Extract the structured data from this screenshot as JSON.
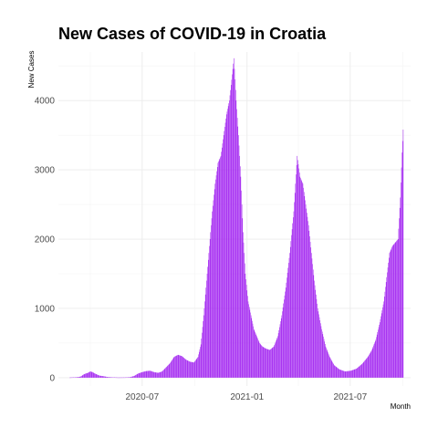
{
  "chart_data": {
    "type": "bar",
    "title": "New Cases of COVID-19 in Croatia",
    "xlabel": "Month",
    "ylabel": "New Cases",
    "x_ticks": [
      "2020-07",
      "2021-01",
      "2021-07"
    ],
    "y_ticks": [
      0,
      1000,
      2000,
      3000,
      4000
    ],
    "xlim": [
      "2020-02-05",
      "2021-10-15"
    ],
    "ylim": [
      -120,
      4700
    ],
    "grid": true,
    "color": "#a020f0",
    "series": [
      {
        "points": [
          [
            "2020-02-25",
            2
          ],
          [
            "2020-03-05",
            5
          ],
          [
            "2020-03-12",
            10
          ],
          [
            "2020-03-16",
            20
          ],
          [
            "2020-03-20",
            45
          ],
          [
            "2020-03-24",
            60
          ],
          [
            "2020-03-28",
            70
          ],
          [
            "2020-04-01",
            90
          ],
          [
            "2020-04-05",
            80
          ],
          [
            "2020-04-09",
            60
          ],
          [
            "2020-04-13",
            45
          ],
          [
            "2020-04-17",
            30
          ],
          [
            "2020-04-21",
            25
          ],
          [
            "2020-04-25",
            20
          ],
          [
            "2020-05-01",
            10
          ],
          [
            "2020-05-10",
            5
          ],
          [
            "2020-05-20",
            2
          ],
          [
            "2020-06-01",
            3
          ],
          [
            "2020-06-10",
            8
          ],
          [
            "2020-06-17",
            25
          ],
          [
            "2020-06-24",
            60
          ],
          [
            "2020-07-01",
            80
          ],
          [
            "2020-07-08",
            95
          ],
          [
            "2020-07-15",
            100
          ],
          [
            "2020-07-22",
            80
          ],
          [
            "2020-07-29",
            70
          ],
          [
            "2020-08-05",
            90
          ],
          [
            "2020-08-12",
            150
          ],
          [
            "2020-08-19",
            210
          ],
          [
            "2020-08-26",
            300
          ],
          [
            "2020-09-02",
            330
          ],
          [
            "2020-09-09",
            310
          ],
          [
            "2020-09-16",
            260
          ],
          [
            "2020-09-23",
            230
          ],
          [
            "2020-09-30",
            220
          ],
          [
            "2020-10-07",
            300
          ],
          [
            "2020-10-12",
            480
          ],
          [
            "2020-10-17",
            900
          ],
          [
            "2020-10-22",
            1400
          ],
          [
            "2020-10-27",
            1900
          ],
          [
            "2020-11-01",
            2400
          ],
          [
            "2020-11-06",
            2800
          ],
          [
            "2020-11-11",
            3100
          ],
          [
            "2020-11-16",
            3200
          ],
          [
            "2020-11-21",
            3500
          ],
          [
            "2020-11-26",
            3800
          ],
          [
            "2020-12-01",
            4000
          ],
          [
            "2020-12-05",
            4300
          ],
          [
            "2020-12-09",
            4610
          ],
          [
            "2020-12-13",
            4000
          ],
          [
            "2020-12-17",
            3500
          ],
          [
            "2020-12-21",
            2900
          ],
          [
            "2020-12-25",
            2100
          ],
          [
            "2020-12-29",
            1500
          ],
          [
            "2021-01-03",
            1100
          ],
          [
            "2021-01-08",
            900
          ],
          [
            "2021-01-13",
            700
          ],
          [
            "2021-01-18",
            600
          ],
          [
            "2021-01-23",
            500
          ],
          [
            "2021-01-28",
            450
          ],
          [
            "2021-02-03",
            420
          ],
          [
            "2021-02-10",
            400
          ],
          [
            "2021-02-17",
            450
          ],
          [
            "2021-02-24",
            600
          ],
          [
            "2021-03-03",
            900
          ],
          [
            "2021-03-10",
            1300
          ],
          [
            "2021-03-17",
            1800
          ],
          [
            "2021-03-24",
            2400
          ],
          [
            "2021-03-30",
            3200
          ],
          [
            "2021-04-04",
            2900
          ],
          [
            "2021-04-09",
            2800
          ],
          [
            "2021-04-14",
            2500
          ],
          [
            "2021-04-19",
            2200
          ],
          [
            "2021-04-24",
            1800
          ],
          [
            "2021-04-29",
            1400
          ],
          [
            "2021-05-05",
            1000
          ],
          [
            "2021-05-12",
            700
          ],
          [
            "2021-05-19",
            450
          ],
          [
            "2021-05-26",
            300
          ],
          [
            "2021-06-03",
            180
          ],
          [
            "2021-06-12",
            120
          ],
          [
            "2021-06-22",
            90
          ],
          [
            "2021-07-02",
            100
          ],
          [
            "2021-07-12",
            130
          ],
          [
            "2021-07-22",
            200
          ],
          [
            "2021-08-01",
            300
          ],
          [
            "2021-08-08",
            400
          ],
          [
            "2021-08-15",
            550
          ],
          [
            "2021-08-22",
            800
          ],
          [
            "2021-08-29",
            1100
          ],
          [
            "2021-09-03",
            1450
          ],
          [
            "2021-09-08",
            1800
          ],
          [
            "2021-09-13",
            1900
          ],
          [
            "2021-09-18",
            1950
          ],
          [
            "2021-09-23",
            2000
          ],
          [
            "2021-09-27",
            2600
          ],
          [
            "2021-09-30",
            3250
          ],
          [
            "2021-10-02",
            3580
          ]
        ]
      }
    ]
  }
}
